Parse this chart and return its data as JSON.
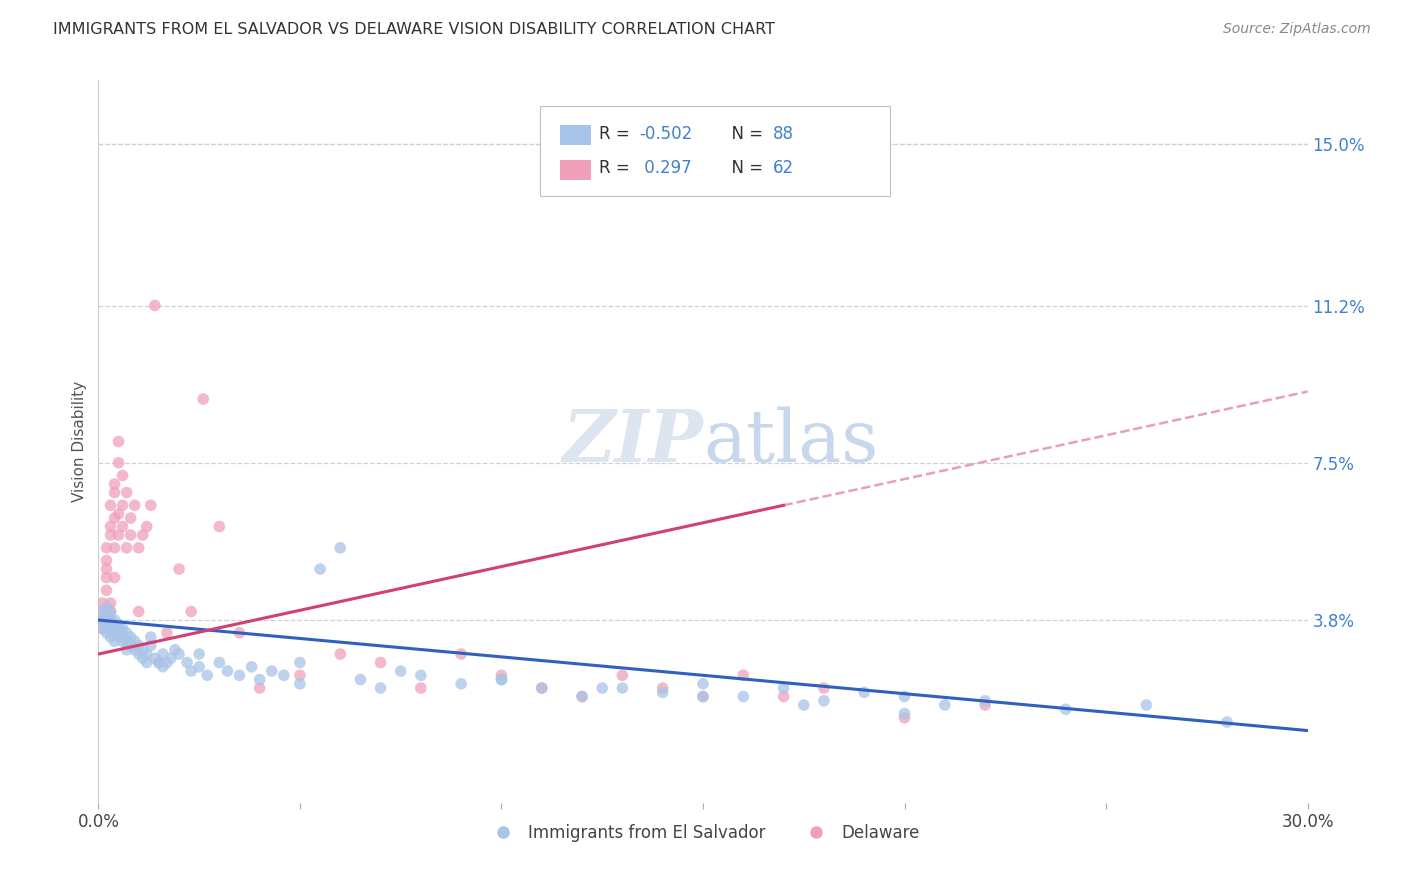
{
  "title": "IMMIGRANTS FROM EL SALVADOR VS DELAWARE VISION DISABILITY CORRELATION CHART",
  "source": "Source: ZipAtlas.com",
  "ylabel": "Vision Disability",
  "ytick_labels": [
    "3.8%",
    "7.5%",
    "11.2%",
    "15.0%"
  ],
  "ytick_values": [
    0.038,
    0.075,
    0.112,
    0.15
  ],
  "xlim": [
    0.0,
    0.3
  ],
  "ylim": [
    -0.005,
    0.165
  ],
  "legend_label1": "R = -0.502   N = 88",
  "legend_label2": "R =  0.297   N = 62",
  "legend_bottom_label1": "Immigrants from El Salvador",
  "legend_bottom_label2": "Delaware",
  "blue_color": "#a8c4e8",
  "pink_color": "#f0a0b8",
  "line_blue": "#3060c0",
  "line_pink": "#d04070",
  "line_pink_dashed": "#e8a0b8",
  "blue_scatter_x": [
    0.001,
    0.001,
    0.001,
    0.002,
    0.002,
    0.002,
    0.002,
    0.003,
    0.003,
    0.003,
    0.003,
    0.003,
    0.004,
    0.004,
    0.004,
    0.004,
    0.005,
    0.005,
    0.005,
    0.005,
    0.006,
    0.006,
    0.006,
    0.007,
    0.007,
    0.007,
    0.008,
    0.008,
    0.009,
    0.009,
    0.01,
    0.01,
    0.011,
    0.011,
    0.012,
    0.012,
    0.013,
    0.013,
    0.014,
    0.015,
    0.016,
    0.016,
    0.017,
    0.018,
    0.019,
    0.02,
    0.022,
    0.023,
    0.025,
    0.027,
    0.03,
    0.032,
    0.035,
    0.038,
    0.04,
    0.043,
    0.046,
    0.05,
    0.055,
    0.06,
    0.065,
    0.07,
    0.08,
    0.09,
    0.1,
    0.11,
    0.12,
    0.13,
    0.14,
    0.15,
    0.16,
    0.17,
    0.18,
    0.19,
    0.2,
    0.21,
    0.22,
    0.24,
    0.26,
    0.28,
    0.025,
    0.05,
    0.075,
    0.1,
    0.125,
    0.15,
    0.175,
    0.2
  ],
  "blue_scatter_y": [
    0.038,
    0.04,
    0.036,
    0.037,
    0.039,
    0.035,
    0.041,
    0.036,
    0.038,
    0.034,
    0.04,
    0.037,
    0.035,
    0.038,
    0.036,
    0.033,
    0.036,
    0.034,
    0.037,
    0.035,
    0.034,
    0.036,
    0.033,
    0.035,
    0.033,
    0.031,
    0.034,
    0.032,
    0.033,
    0.031,
    0.032,
    0.03,
    0.031,
    0.029,
    0.03,
    0.028,
    0.032,
    0.034,
    0.029,
    0.028,
    0.03,
    0.027,
    0.028,
    0.029,
    0.031,
    0.03,
    0.028,
    0.026,
    0.027,
    0.025,
    0.028,
    0.026,
    0.025,
    0.027,
    0.024,
    0.026,
    0.025,
    0.023,
    0.05,
    0.055,
    0.024,
    0.022,
    0.025,
    0.023,
    0.024,
    0.022,
    0.02,
    0.022,
    0.021,
    0.023,
    0.02,
    0.022,
    0.019,
    0.021,
    0.02,
    0.018,
    0.019,
    0.017,
    0.018,
    0.014,
    0.03,
    0.028,
    0.026,
    0.024,
    0.022,
    0.02,
    0.018,
    0.016
  ],
  "pink_scatter_x": [
    0.001,
    0.001,
    0.001,
    0.001,
    0.002,
    0.002,
    0.002,
    0.002,
    0.002,
    0.003,
    0.003,
    0.003,
    0.003,
    0.003,
    0.003,
    0.004,
    0.004,
    0.004,
    0.004,
    0.004,
    0.005,
    0.005,
    0.005,
    0.005,
    0.006,
    0.006,
    0.006,
    0.007,
    0.007,
    0.008,
    0.008,
    0.009,
    0.01,
    0.01,
    0.011,
    0.012,
    0.013,
    0.014,
    0.015,
    0.017,
    0.02,
    0.023,
    0.026,
    0.03,
    0.035,
    0.04,
    0.05,
    0.06,
    0.07,
    0.08,
    0.09,
    0.1,
    0.11,
    0.12,
    0.13,
    0.14,
    0.15,
    0.16,
    0.17,
    0.18,
    0.2,
    0.22
  ],
  "pink_scatter_y": [
    0.038,
    0.042,
    0.04,
    0.036,
    0.055,
    0.048,
    0.05,
    0.052,
    0.045,
    0.04,
    0.042,
    0.06,
    0.038,
    0.065,
    0.058,
    0.062,
    0.068,
    0.055,
    0.07,
    0.048,
    0.075,
    0.08,
    0.063,
    0.058,
    0.06,
    0.072,
    0.065,
    0.055,
    0.068,
    0.058,
    0.062,
    0.065,
    0.04,
    0.055,
    0.058,
    0.06,
    0.065,
    0.112,
    0.028,
    0.035,
    0.05,
    0.04,
    0.09,
    0.06,
    0.035,
    0.022,
    0.025,
    0.03,
    0.028,
    0.022,
    0.03,
    0.025,
    0.022,
    0.02,
    0.025,
    0.022,
    0.02,
    0.025,
    0.02,
    0.022,
    0.015,
    0.018
  ]
}
